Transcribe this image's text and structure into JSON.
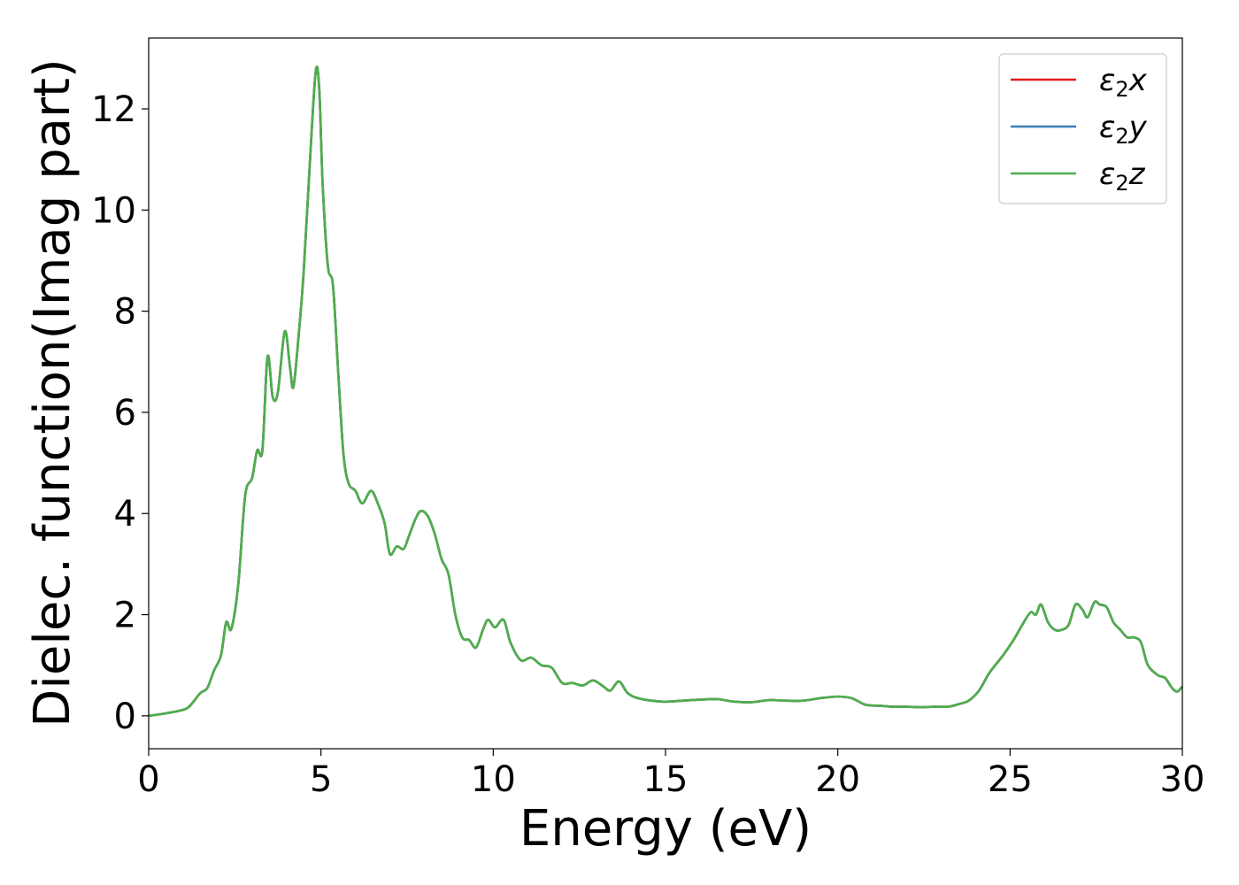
{
  "chart_data": {
    "type": "line",
    "xlabel": "Energy (eV)",
    "ylabel": "Dielec. function(Imag part)",
    "xlim": [
      0,
      30
    ],
    "ylim": [
      -0.65,
      13.4
    ],
    "xticks": [
      0,
      5,
      10,
      15,
      20,
      25,
      30
    ],
    "yticks": [
      0,
      2,
      4,
      6,
      8,
      10,
      12
    ],
    "grid": false,
    "legend_position": "top-right",
    "legend": [
      {
        "base": "ε",
        "sub": "2",
        "var": "x",
        "color": "#e41a1c"
      },
      {
        "base": "ε",
        "sub": "2",
        "var": "y",
        "color": "#377eb8"
      },
      {
        "base": "ε",
        "sub": "2",
        "var": "z",
        "color": "#4daf4a"
      }
    ],
    "x": [
      0.0,
      0.5,
      1.0,
      1.2,
      1.5,
      1.7,
      1.9,
      2.1,
      2.25,
      2.4,
      2.6,
      2.8,
      3.0,
      3.15,
      3.3,
      3.45,
      3.6,
      3.75,
      3.95,
      4.1,
      4.2,
      4.35,
      4.5,
      4.7,
      4.85,
      4.95,
      5.05,
      5.2,
      5.35,
      5.5,
      5.65,
      5.8,
      6.0,
      6.2,
      6.45,
      6.65,
      6.85,
      7.0,
      7.2,
      7.4,
      7.55,
      7.75,
      7.9,
      8.1,
      8.3,
      8.5,
      8.7,
      8.9,
      9.1,
      9.3,
      9.5,
      9.7,
      9.85,
      10.05,
      10.3,
      10.5,
      10.8,
      11.1,
      11.4,
      11.7,
      12.0,
      12.3,
      12.6,
      12.9,
      13.2,
      13.4,
      13.65,
      13.9,
      14.2,
      14.6,
      15.0,
      15.5,
      16.0,
      16.5,
      17.0,
      17.5,
      18.0,
      18.5,
      19.0,
      19.5,
      20.0,
      20.4,
      20.8,
      21.2,
      21.6,
      22.0,
      22.4,
      22.8,
      23.2,
      23.5,
      23.8,
      24.1,
      24.4,
      24.8,
      25.1,
      25.4,
      25.6,
      25.75,
      25.9,
      26.1,
      26.3,
      26.5,
      26.7,
      26.9,
      27.1,
      27.25,
      27.45,
      27.6,
      27.8,
      28.0,
      28.2,
      28.4,
      28.6,
      28.8,
      29.0,
      29.3,
      29.5,
      29.7,
      29.85,
      30.0
    ],
    "series": [
      {
        "values": [
          0.0,
          0.05,
          0.12,
          0.2,
          0.45,
          0.55,
          0.9,
          1.2,
          1.85,
          1.72,
          2.6,
          4.35,
          4.7,
          5.25,
          5.25,
          7.1,
          6.3,
          6.4,
          7.6,
          6.9,
          6.5,
          7.5,
          8.8,
          11.2,
          12.75,
          12.4,
          10.5,
          8.9,
          8.5,
          6.8,
          5.2,
          4.6,
          4.45,
          4.2,
          4.45,
          4.2,
          3.8,
          3.2,
          3.35,
          3.3,
          3.55,
          3.9,
          4.05,
          3.95,
          3.6,
          3.1,
          2.8,
          2.0,
          1.55,
          1.5,
          1.35,
          1.7,
          1.9,
          1.75,
          1.9,
          1.45,
          1.1,
          1.15,
          1.0,
          0.95,
          0.65,
          0.65,
          0.6,
          0.7,
          0.58,
          0.5,
          0.68,
          0.45,
          0.35,
          0.3,
          0.28,
          0.3,
          0.32,
          0.33,
          0.28,
          0.27,
          0.31,
          0.3,
          0.3,
          0.35,
          0.38,
          0.35,
          0.22,
          0.2,
          0.18,
          0.18,
          0.17,
          0.18,
          0.18,
          0.23,
          0.3,
          0.5,
          0.85,
          1.2,
          1.5,
          1.85,
          2.05,
          2.0,
          2.2,
          1.85,
          1.7,
          1.7,
          1.8,
          2.2,
          2.1,
          1.95,
          2.25,
          2.2,
          2.15,
          1.85,
          1.7,
          1.55,
          1.55,
          1.45,
          1.0,
          0.8,
          0.75,
          0.55,
          0.48,
          0.58
        ]
      },
      {
        "values": [
          0.0,
          0.05,
          0.12,
          0.2,
          0.45,
          0.55,
          0.9,
          1.2,
          1.85,
          1.72,
          2.6,
          4.35,
          4.7,
          5.25,
          5.25,
          7.1,
          6.3,
          6.4,
          7.6,
          6.9,
          6.5,
          7.5,
          8.8,
          11.2,
          12.75,
          12.4,
          10.5,
          8.9,
          8.5,
          6.8,
          5.2,
          4.6,
          4.45,
          4.2,
          4.45,
          4.2,
          3.8,
          3.2,
          3.35,
          3.3,
          3.55,
          3.9,
          4.05,
          3.95,
          3.6,
          3.1,
          2.8,
          2.0,
          1.55,
          1.5,
          1.35,
          1.7,
          1.9,
          1.75,
          1.9,
          1.45,
          1.1,
          1.15,
          1.0,
          0.95,
          0.65,
          0.65,
          0.6,
          0.7,
          0.58,
          0.5,
          0.68,
          0.45,
          0.35,
          0.3,
          0.28,
          0.3,
          0.32,
          0.33,
          0.28,
          0.27,
          0.31,
          0.3,
          0.3,
          0.35,
          0.38,
          0.35,
          0.22,
          0.2,
          0.18,
          0.18,
          0.17,
          0.18,
          0.18,
          0.23,
          0.3,
          0.5,
          0.85,
          1.2,
          1.5,
          1.85,
          2.05,
          2.0,
          2.2,
          1.85,
          1.7,
          1.7,
          1.8,
          2.2,
          2.1,
          1.95,
          2.25,
          2.2,
          2.15,
          1.85,
          1.7,
          1.55,
          1.55,
          1.45,
          1.0,
          0.8,
          0.75,
          0.55,
          0.48,
          0.58
        ]
      },
      {
        "values": [
          0.0,
          0.05,
          0.12,
          0.2,
          0.45,
          0.55,
          0.9,
          1.2,
          1.85,
          1.72,
          2.6,
          4.35,
          4.7,
          5.25,
          5.25,
          7.1,
          6.3,
          6.4,
          7.6,
          6.9,
          6.5,
          7.5,
          8.8,
          11.2,
          12.75,
          12.4,
          10.5,
          8.9,
          8.5,
          6.8,
          5.2,
          4.6,
          4.45,
          4.2,
          4.45,
          4.2,
          3.8,
          3.2,
          3.35,
          3.3,
          3.55,
          3.9,
          4.05,
          3.95,
          3.6,
          3.1,
          2.8,
          2.0,
          1.55,
          1.5,
          1.35,
          1.7,
          1.9,
          1.75,
          1.9,
          1.45,
          1.1,
          1.15,
          1.0,
          0.95,
          0.65,
          0.65,
          0.6,
          0.7,
          0.58,
          0.5,
          0.68,
          0.45,
          0.35,
          0.3,
          0.28,
          0.3,
          0.32,
          0.33,
          0.28,
          0.27,
          0.31,
          0.3,
          0.3,
          0.35,
          0.38,
          0.35,
          0.22,
          0.2,
          0.18,
          0.18,
          0.17,
          0.18,
          0.18,
          0.23,
          0.3,
          0.5,
          0.85,
          1.2,
          1.5,
          1.85,
          2.05,
          2.0,
          2.2,
          1.85,
          1.7,
          1.7,
          1.8,
          2.2,
          2.1,
          1.95,
          2.25,
          2.2,
          2.15,
          1.85,
          1.7,
          1.55,
          1.55,
          1.45,
          1.0,
          0.8,
          0.75,
          0.55,
          0.48,
          0.58
        ]
      }
    ]
  }
}
